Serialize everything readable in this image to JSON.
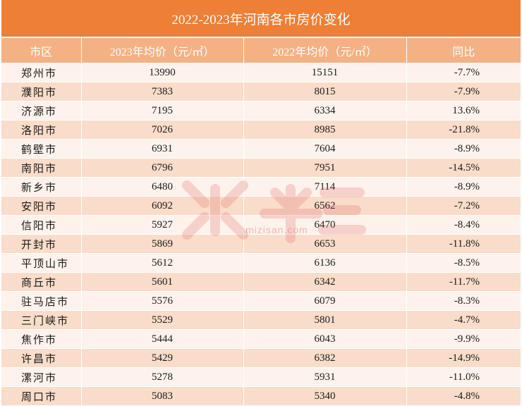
{
  "title": "2022-2023年河南各市房价变化",
  "headers": [
    "市区",
    "2023年均价（元/㎡）",
    "2022年均价（元/㎡）",
    "同比"
  ],
  "rows": [
    {
      "city": "郑州市",
      "p2023": "13990",
      "p2022": "15151",
      "yoy": "-7.7%"
    },
    {
      "city": "濮阳市",
      "p2023": "7383",
      "p2022": "8015",
      "yoy": "-7.9%"
    },
    {
      "city": "济源市",
      "p2023": "7195",
      "p2022": "6334",
      "yoy": "13.6%"
    },
    {
      "city": "洛阳市",
      "p2023": "7026",
      "p2022": "8985",
      "yoy": "-21.8%"
    },
    {
      "city": "鹤壁市",
      "p2023": "6931",
      "p2022": "7604",
      "yoy": "-8.9%"
    },
    {
      "city": "南阳市",
      "p2023": "6796",
      "p2022": "7951",
      "yoy": "-14.5%"
    },
    {
      "city": "新乡市",
      "p2023": "6480",
      "p2022": "7114",
      "yoy": "-8.9%"
    },
    {
      "city": "安阳市",
      "p2023": "6092",
      "p2022": "6562",
      "yoy": "-7.2%"
    },
    {
      "city": "信阳市",
      "p2023": "5927",
      "p2022": "6470",
      "yoy": "-8.4%"
    },
    {
      "city": "开封市",
      "p2023": "5869",
      "p2022": "6653",
      "yoy": "-11.8%"
    },
    {
      "city": "平顶山市",
      "p2023": "5612",
      "p2022": "6136",
      "yoy": "-8.5%"
    },
    {
      "city": "商丘市",
      "p2023": "5601",
      "p2022": "6342",
      "yoy": "-11.7%"
    },
    {
      "city": "驻马店市",
      "p2023": "5576",
      "p2022": "6079",
      "yoy": "-8.3%"
    },
    {
      "city": "三门峡市",
      "p2023": "5529",
      "p2022": "5801",
      "yoy": "-4.7%"
    },
    {
      "city": "焦作市",
      "p2023": "5444",
      "p2022": "6043",
      "yoy": "-9.9%"
    },
    {
      "city": "许昌市",
      "p2023": "5429",
      "p2022": "6382",
      "yoy": "-14.9%"
    },
    {
      "city": "漯河市",
      "p2023": "5278",
      "p2022": "5931",
      "yoy": "-11.0%"
    },
    {
      "city": "周口市",
      "p2023": "5083",
      "p2022": "5340",
      "yoy": "-4.8%"
    }
  ],
  "watermark": {
    "brand": "米三",
    "url": "mizisan.com"
  },
  "colors": {
    "title_bg": "#ee7f36",
    "header_bg": "#f4b183",
    "row_light": "#fdf3ec",
    "row_dark": "#f9dcc9"
  }
}
